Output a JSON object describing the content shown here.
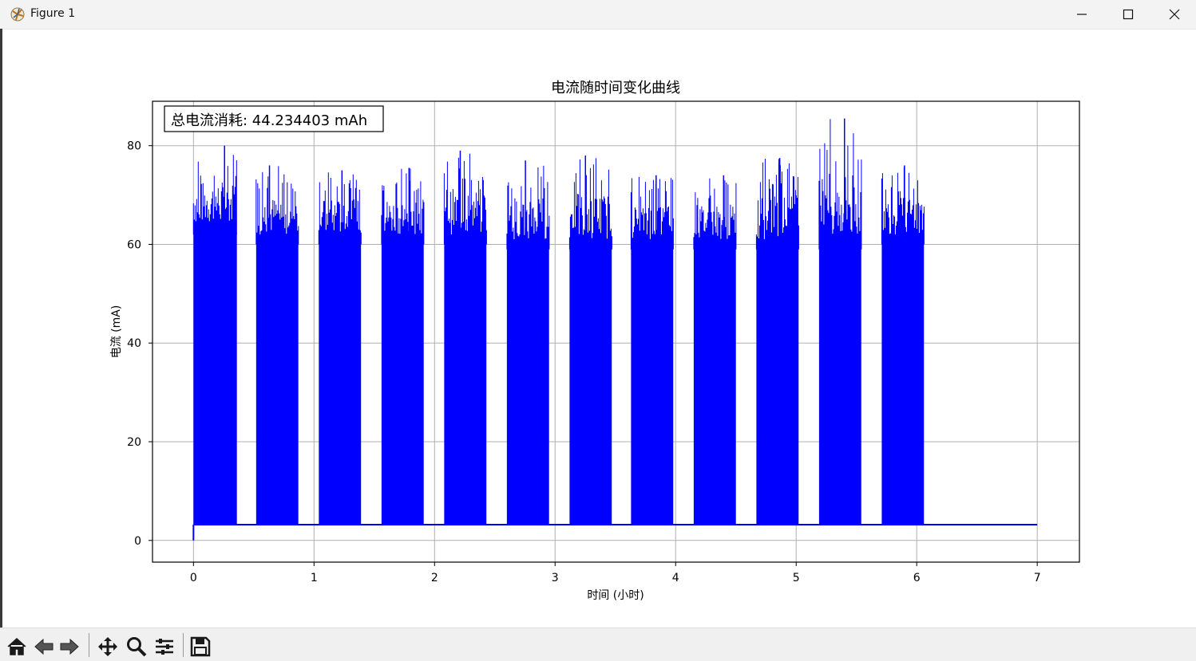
{
  "window": {
    "title": "Figure 1"
  },
  "colors": {
    "series": "#0000ff",
    "grid": "#b0b0b0",
    "frame": "#000000"
  },
  "toolbar": {
    "icons": [
      "home-icon",
      "back-icon",
      "forward-icon",
      "pan-icon",
      "zoom-icon",
      "configure-subplots-icon",
      "save-icon"
    ]
  },
  "chart_data": {
    "type": "line",
    "title": "电流随时间变化曲线",
    "xlabel": "时间 (小时)",
    "ylabel": "电流 (mA)",
    "xlim": [
      -0.34,
      7.35
    ],
    "ylim": [
      -4.4,
      89.0
    ],
    "xticks": [
      0,
      1,
      2,
      3,
      4,
      5,
      6,
      7
    ],
    "yticks": [
      0,
      20,
      40,
      60,
      80
    ],
    "grid": true,
    "annotation": "总电流消耗: 44.234403 mAh",
    "annotation_position": "top-left",
    "baseline_current": 3.2,
    "x_start": 0,
    "x_end": 7.0,
    "bursts": [
      {
        "start": 0.0,
        "end": 0.36,
        "base": 64,
        "peak": 80
      },
      {
        "start": 0.52,
        "end": 0.87,
        "base": 62,
        "peak": 76
      },
      {
        "start": 1.04,
        "end": 1.39,
        "base": 62,
        "peak": 75
      },
      {
        "start": 1.56,
        "end": 1.91,
        "base": 62,
        "peak": 75.5
      },
      {
        "start": 2.08,
        "end": 2.43,
        "base": 62,
        "peak": 79
      },
      {
        "start": 2.6,
        "end": 2.95,
        "base": 61,
        "peak": 77
      },
      {
        "start": 3.12,
        "end": 3.47,
        "base": 61,
        "peak": 78
      },
      {
        "start": 3.63,
        "end": 3.98,
        "base": 61,
        "peak": 74
      },
      {
        "start": 4.15,
        "end": 4.5,
        "base": 61,
        "peak": 74
      },
      {
        "start": 4.67,
        "end": 5.02,
        "base": 61,
        "peak": 77.5
      },
      {
        "start": 5.19,
        "end": 5.54,
        "base": 61,
        "peak": 85.5
      },
      {
        "start": 5.71,
        "end": 6.06,
        "base": 62,
        "peak": 76
      }
    ]
  }
}
